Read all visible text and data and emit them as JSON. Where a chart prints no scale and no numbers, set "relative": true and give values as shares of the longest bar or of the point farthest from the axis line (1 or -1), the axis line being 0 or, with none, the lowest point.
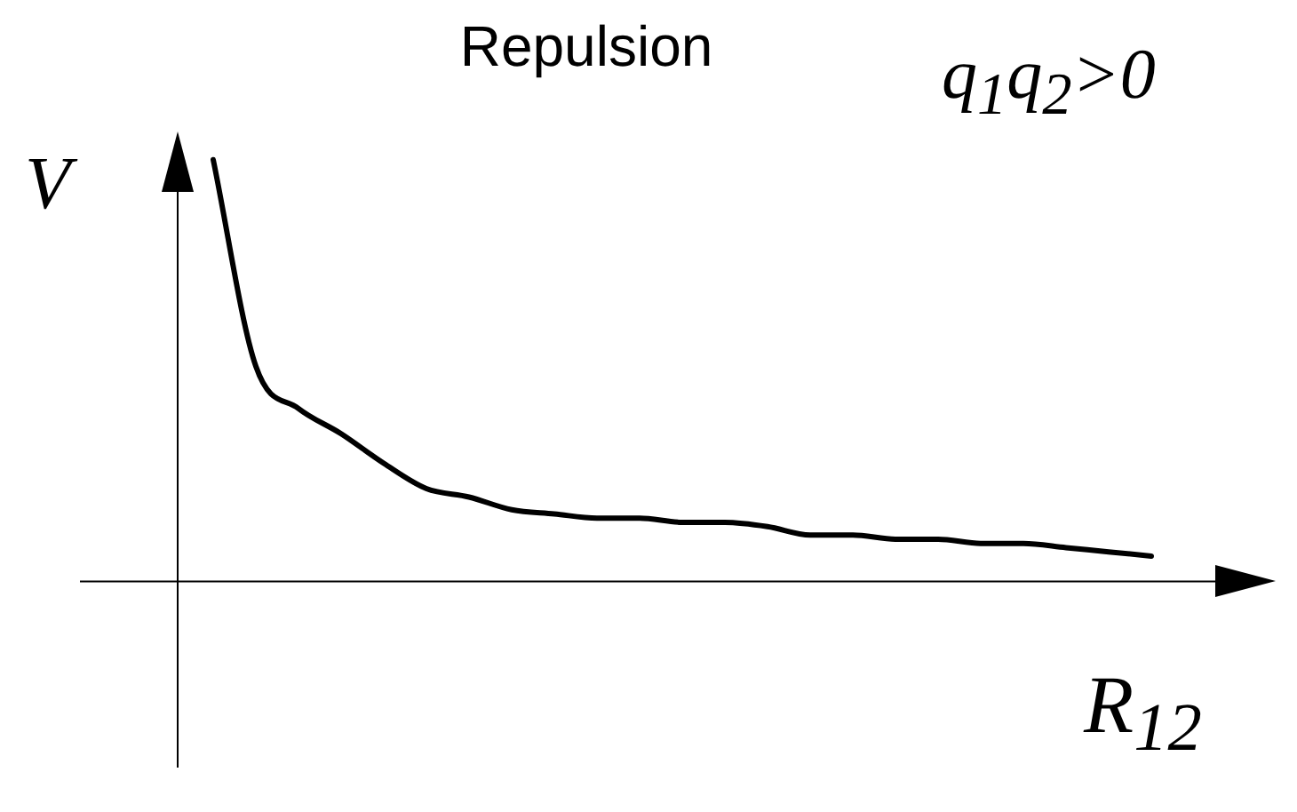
{
  "chart_data": {
    "type": "line",
    "title": "Repulsion",
    "xlabel": "R$_{12}$",
    "ylabel": "V",
    "annotations": [
      "q$_{1}$q$_{2}$>0"
    ],
    "relative": true,
    "color": "#000000",
    "categories": [
      null,
      null,
      null,
      null,
      null,
      null,
      null,
      null,
      null,
      null,
      null,
      null,
      null,
      null,
      null,
      null,
      null,
      null,
      null,
      null,
      null,
      null,
      null
    ],
    "values": [
      1,
      0.51,
      0.41,
      0.35,
      0.28,
      0.22,
      0.2,
      0.17,
      0.16,
      0.15,
      0.15,
      0.14,
      0.14,
      0.13,
      0.11,
      0.11,
      0.1,
      0.1,
      0.09,
      0.09,
      0.08,
      0.07,
      0.06
    ]
  }
}
